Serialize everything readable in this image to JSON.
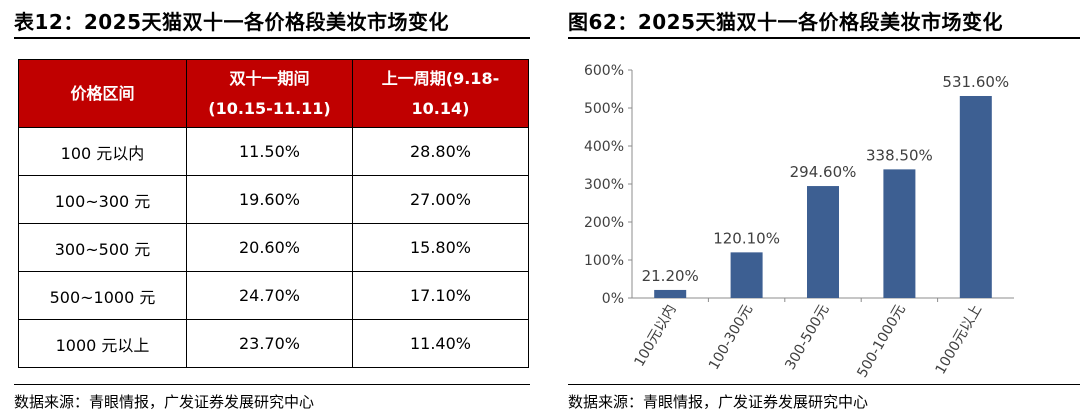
{
  "left": {
    "title": "表12：2025天猫双十一各价格段美妆市场变化",
    "table": {
      "headers": [
        [
          "价格区间"
        ],
        [
          "双十一期间",
          "(10.15-11.11)"
        ],
        [
          "上一周期(9.18-",
          "10.14)"
        ]
      ],
      "rows": [
        [
          "100 元以内",
          "11.50%",
          "28.80%"
        ],
        [
          "100~300 元",
          "19.60%",
          "27.00%"
        ],
        [
          "300~500 元",
          "20.60%",
          "15.80%"
        ],
        [
          "500~1000 元",
          "24.70%",
          "17.10%"
        ],
        [
          "1000 元以上",
          "23.70%",
          "11.40%"
        ]
      ]
    },
    "source": "数据来源：青眼情报，广发证券发展研究中心"
  },
  "right": {
    "title": "图62：2025天猫双十一各价格段美妆市场变化",
    "source": "数据来源：青眼情报，广发证券发展研究中心"
  },
  "chart_data": {
    "type": "bar",
    "categories": [
      "100元以内",
      "100-300元",
      "300-500元",
      "500-1000元",
      "1000元以上"
    ],
    "values": [
      21.2,
      120.1,
      294.6,
      338.5,
      531.6
    ],
    "value_labels": [
      "21.20%",
      "120.10%",
      "294.60%",
      "338.50%",
      "531.60%"
    ],
    "yticks": [
      "0%",
      "100%",
      "200%",
      "300%",
      "400%",
      "500%",
      "600%"
    ],
    "ylim": [
      0,
      600
    ],
    "grid": false,
    "bar_color": "#3d5f92",
    "xlabel": "",
    "ylabel": ""
  }
}
